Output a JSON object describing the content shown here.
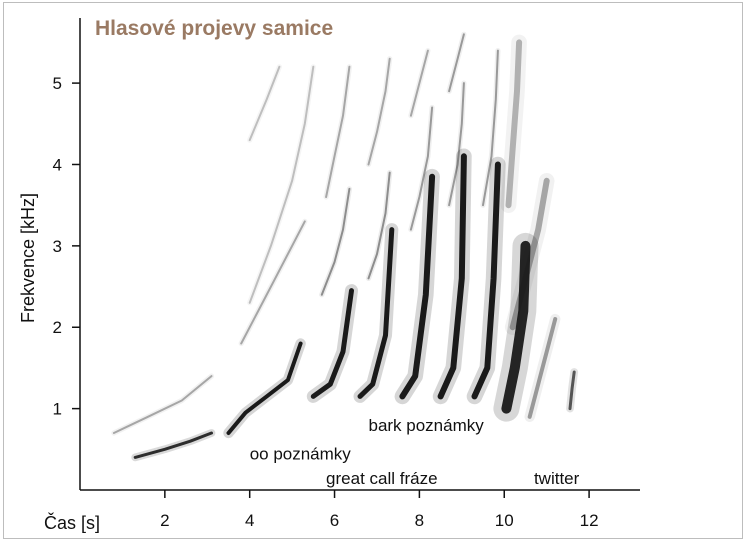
{
  "chart_data": {
    "type": "spectrogram",
    "title": "Hlasové projevy samice",
    "title_color": "#9a7a63",
    "xlabel": "Čas [s]",
    "ylabel": "Frekvence [kHz]",
    "xlim": [
      0,
      13.2
    ],
    "ylim": [
      0,
      5.8
    ],
    "x_ticks": [
      2,
      4,
      6,
      8,
      10,
      12
    ],
    "y_ticks": [
      1,
      2,
      3,
      4,
      5
    ],
    "grid": false,
    "ink_color": "#1a1a1a",
    "annotations": [
      {
        "text": "oo poznámky",
        "x": 4.0,
        "y": 0.3
      },
      {
        "text": "great call fráze",
        "x": 5.8,
        "y": 0.0
      },
      {
        "text": "bark poznámky",
        "x": 6.8,
        "y": 0.65
      },
      {
        "text": "twitter",
        "x": 10.7,
        "y": 0.0
      }
    ],
    "series": [
      {
        "points": [
          [
            1.3,
            0.4
          ],
          [
            2.0,
            0.5
          ],
          [
            2.6,
            0.6
          ],
          [
            3.1,
            0.7
          ]
        ],
        "intensity": 0.9,
        "width": 3
      },
      {
        "points": [
          [
            3.5,
            0.7
          ],
          [
            3.9,
            0.95
          ],
          [
            4.4,
            1.15
          ],
          [
            4.9,
            1.35
          ],
          [
            5.2,
            1.8
          ]
        ],
        "intensity": 1.0,
        "width": 4
      },
      {
        "points": [
          [
            5.5,
            1.15
          ],
          [
            5.9,
            1.3
          ],
          [
            6.2,
            1.7
          ],
          [
            6.4,
            2.45
          ]
        ],
        "intensity": 1.0,
        "width": 5
      },
      {
        "points": [
          [
            6.6,
            1.15
          ],
          [
            6.9,
            1.3
          ],
          [
            7.2,
            1.9
          ],
          [
            7.35,
            3.2
          ]
        ],
        "intensity": 1.0,
        "width": 5
      },
      {
        "points": [
          [
            7.6,
            1.15
          ],
          [
            7.9,
            1.4
          ],
          [
            8.15,
            2.4
          ],
          [
            8.3,
            3.85
          ]
        ],
        "intensity": 1.0,
        "width": 6
      },
      {
        "points": [
          [
            8.5,
            1.15
          ],
          [
            8.8,
            1.5
          ],
          [
            9.0,
            2.6
          ],
          [
            9.05,
            4.1
          ]
        ],
        "intensity": 1.0,
        "width": 6
      },
      {
        "points": [
          [
            9.3,
            1.15
          ],
          [
            9.6,
            1.5
          ],
          [
            9.75,
            2.6
          ],
          [
            9.85,
            4.0
          ]
        ],
        "intensity": 1.0,
        "width": 6
      },
      {
        "points": [
          [
            0.8,
            0.7
          ],
          [
            1.6,
            0.9
          ],
          [
            2.4,
            1.1
          ],
          [
            3.1,
            1.4
          ]
        ],
        "intensity": 0.35,
        "width": 2
      },
      {
        "points": [
          [
            3.8,
            1.8
          ],
          [
            4.2,
            2.2
          ],
          [
            4.6,
            2.6
          ],
          [
            5.0,
            3.0
          ],
          [
            5.3,
            3.3
          ]
        ],
        "intensity": 0.35,
        "width": 2
      },
      {
        "points": [
          [
            4.0,
            2.3
          ],
          [
            4.5,
            3.0
          ],
          [
            5.0,
            3.8
          ],
          [
            5.3,
            4.5
          ],
          [
            5.5,
            5.2
          ]
        ],
        "intensity": 0.25,
        "width": 2
      },
      {
        "points": [
          [
            4.0,
            4.3
          ],
          [
            4.4,
            4.8
          ],
          [
            4.7,
            5.2
          ]
        ],
        "intensity": 0.25,
        "width": 2
      },
      {
        "points": [
          [
            5.7,
            2.4
          ],
          [
            6.0,
            2.8
          ],
          [
            6.2,
            3.2
          ],
          [
            6.35,
            3.7
          ]
        ],
        "intensity": 0.45,
        "width": 2
      },
      {
        "points": [
          [
            5.8,
            3.6
          ],
          [
            6.0,
            4.1
          ],
          [
            6.2,
            4.6
          ],
          [
            6.35,
            5.2
          ]
        ],
        "intensity": 0.35,
        "width": 2
      },
      {
        "points": [
          [
            6.8,
            2.6
          ],
          [
            7.0,
            2.9
          ],
          [
            7.2,
            3.4
          ],
          [
            7.3,
            3.9
          ]
        ],
        "intensity": 0.45,
        "width": 2
      },
      {
        "points": [
          [
            6.8,
            4.0
          ],
          [
            7.0,
            4.4
          ],
          [
            7.2,
            4.9
          ],
          [
            7.3,
            5.3
          ]
        ],
        "intensity": 0.35,
        "width": 2
      },
      {
        "points": [
          [
            7.8,
            3.2
          ],
          [
            8.0,
            3.6
          ],
          [
            8.2,
            4.1
          ],
          [
            8.3,
            4.7
          ]
        ],
        "intensity": 0.4,
        "width": 2
      },
      {
        "points": [
          [
            7.8,
            4.6
          ],
          [
            8.0,
            5.0
          ],
          [
            8.2,
            5.4
          ]
        ],
        "intensity": 0.35,
        "width": 2
      },
      {
        "points": [
          [
            8.7,
            3.5
          ],
          [
            8.9,
            4.0
          ],
          [
            9.0,
            4.5
          ],
          [
            9.05,
            5.0
          ]
        ],
        "intensity": 0.4,
        "width": 2
      },
      {
        "points": [
          [
            8.7,
            4.9
          ],
          [
            8.9,
            5.3
          ],
          [
            9.05,
            5.6
          ]
        ],
        "intensity": 0.4,
        "width": 2
      },
      {
        "points": [
          [
            9.5,
            3.5
          ],
          [
            9.7,
            4.1
          ],
          [
            9.8,
            4.8
          ],
          [
            9.85,
            5.4
          ]
        ],
        "intensity": 0.4,
        "width": 2
      },
      {
        "points": [
          [
            10.05,
            1.0
          ],
          [
            10.25,
            1.5
          ],
          [
            10.45,
            2.2
          ],
          [
            10.5,
            3.0
          ]
        ],
        "intensity": 0.95,
        "width": 10
      },
      {
        "points": [
          [
            10.2,
            2.0
          ],
          [
            10.5,
            2.6
          ],
          [
            10.8,
            3.2
          ],
          [
            11.0,
            3.8
          ]
        ],
        "intensity": 0.35,
        "width": 6
      },
      {
        "points": [
          [
            10.1,
            3.5
          ],
          [
            10.2,
            4.2
          ],
          [
            10.3,
            4.9
          ],
          [
            10.35,
            5.5
          ]
        ],
        "intensity": 0.3,
        "width": 6
      },
      {
        "points": [
          [
            10.6,
            0.9
          ],
          [
            10.8,
            1.3
          ],
          [
            11.0,
            1.7
          ],
          [
            11.2,
            2.1
          ]
        ],
        "intensity": 0.4,
        "width": 4
      },
      {
        "points": [
          [
            11.55,
            1.0
          ],
          [
            11.6,
            1.25
          ],
          [
            11.65,
            1.45
          ]
        ],
        "intensity": 0.7,
        "width": 3
      }
    ]
  }
}
